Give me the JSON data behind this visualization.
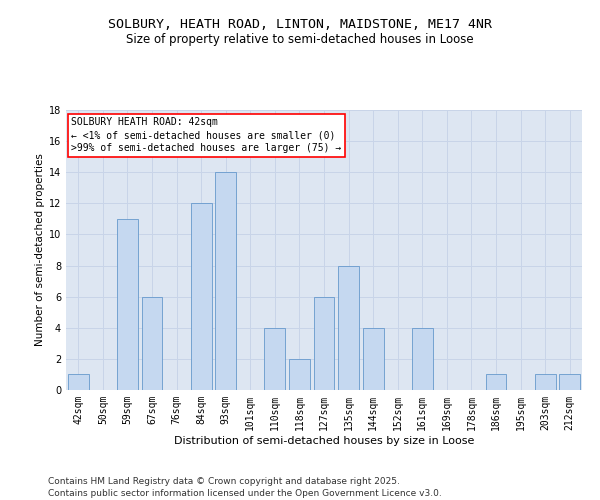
{
  "title_line1": "SOLBURY, HEATH ROAD, LINTON, MAIDSTONE, ME17 4NR",
  "title_line2": "Size of property relative to semi-detached houses in Loose",
  "xlabel": "Distribution of semi-detached houses by size in Loose",
  "ylabel": "Number of semi-detached properties",
  "categories": [
    "42sqm",
    "50sqm",
    "59sqm",
    "67sqm",
    "76sqm",
    "84sqm",
    "93sqm",
    "101sqm",
    "110sqm",
    "118sqm",
    "127sqm",
    "135sqm",
    "144sqm",
    "152sqm",
    "161sqm",
    "169sqm",
    "178sqm",
    "186sqm",
    "195sqm",
    "203sqm",
    "212sqm"
  ],
  "values": [
    1,
    0,
    11,
    6,
    0,
    12,
    14,
    0,
    4,
    2,
    6,
    8,
    4,
    0,
    4,
    0,
    0,
    1,
    0,
    1,
    1
  ],
  "bar_color_normal": "#c5d8f0",
  "bar_edge_color": "#6699cc",
  "annotation_box_text": "SOLBURY HEATH ROAD: 42sqm\n← <1% of semi-detached houses are smaller (0)\n>99% of semi-detached houses are larger (75) →",
  "ylim": [
    0,
    18
  ],
  "yticks": [
    0,
    2,
    4,
    6,
    8,
    10,
    12,
    14,
    16,
    18
  ],
  "grid_color": "#c8d4e8",
  "background_color": "#dde6f2",
  "footer_line1": "Contains HM Land Registry data © Crown copyright and database right 2025.",
  "footer_line2": "Contains public sector information licensed under the Open Government Licence v3.0.",
  "title_fontsize": 9.5,
  "subtitle_fontsize": 8.5,
  "axis_label_fontsize": 8,
  "tick_fontsize": 7,
  "footer_fontsize": 6.5,
  "annotation_fontsize": 7,
  "ylabel_fontsize": 7.5
}
